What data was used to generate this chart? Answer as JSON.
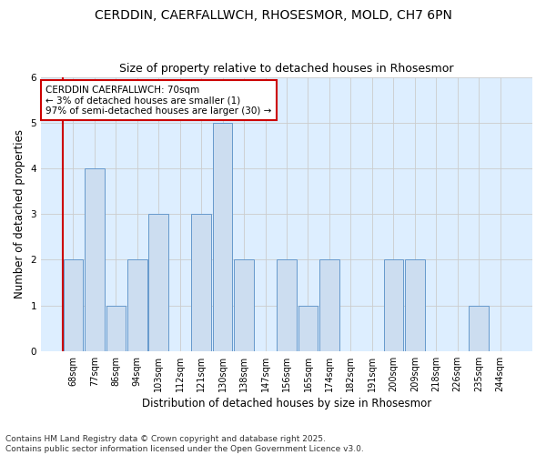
{
  "title_line1": "CERDDIN, CAERFALLWCH, RHOSESMOR, MOLD, CH7 6PN",
  "title_line2": "Size of property relative to detached houses in Rhosesmor",
  "xlabel": "Distribution of detached houses by size in Rhosesmor",
  "ylabel": "Number of detached properties",
  "categories": [
    "68sqm",
    "77sqm",
    "86sqm",
    "94sqm",
    "103sqm",
    "112sqm",
    "121sqm",
    "130sqm",
    "138sqm",
    "147sqm",
    "156sqm",
    "165sqm",
    "174sqm",
    "182sqm",
    "191sqm",
    "200sqm",
    "209sqm",
    "218sqm",
    "226sqm",
    "235sqm",
    "244sqm"
  ],
  "values": [
    2,
    4,
    1,
    2,
    3,
    0,
    3,
    5,
    2,
    0,
    2,
    1,
    2,
    0,
    0,
    2,
    2,
    0,
    0,
    1,
    0
  ],
  "bar_color": "#ccddf0",
  "bar_edge_color": "#6699cc",
  "annotation_text": "CERDDIN CAERFALLWCH: 70sqm\n← 3% of detached houses are smaller (1)\n97% of semi-detached houses are larger (30) →",
  "annotation_box_facecolor": "#ffffff",
  "annotation_box_edgecolor": "#cc0000",
  "red_line_color": "#cc0000",
  "ylim": [
    0,
    6
  ],
  "yticks": [
    0,
    1,
    2,
    3,
    4,
    5,
    6
  ],
  "grid_color": "#cccccc",
  "background_color": "#ddeeff",
  "plot_bg_color": "#ddeeff",
  "footer_text": "Contains HM Land Registry data © Crown copyright and database right 2025.\nContains public sector information licensed under the Open Government Licence v3.0.",
  "title_fontsize": 10,
  "subtitle_fontsize": 9,
  "axis_label_fontsize": 8.5,
  "tick_fontsize": 7,
  "annotation_fontsize": 7.5,
  "footer_fontsize": 6.5,
  "red_line_x": -0.5
}
